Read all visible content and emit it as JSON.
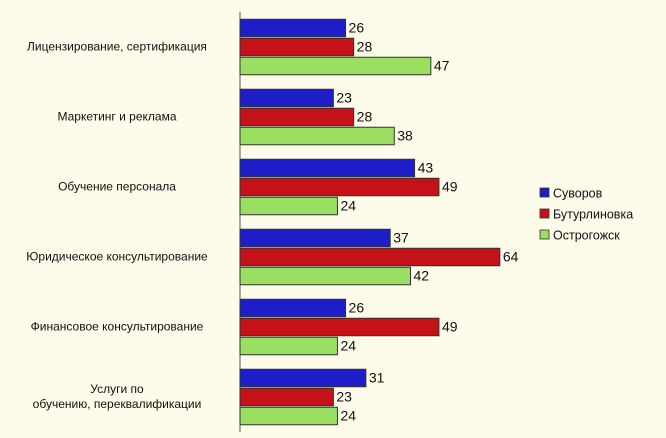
{
  "chart_data": {
    "type": "bar",
    "orientation": "horizontal",
    "categories": [
      "Лицензирование, сертификация",
      "Маркетинг и реклама",
      "Обучение персонала",
      "Юридическое консультирование",
      "Финансовое консультирование",
      "Услуги по\nобучению, переквалификации"
    ],
    "series": [
      {
        "name": "Суворов",
        "color": "#1e1ec8",
        "values": [
          26,
          23,
          43,
          37,
          26,
          31
        ]
      },
      {
        "name": "Бутурлиновка",
        "color": "#c41218",
        "values": [
          28,
          28,
          49,
          64,
          49,
          23
        ]
      },
      {
        "name": "Острогожск",
        "color": "#9adf62",
        "values": [
          47,
          38,
          24,
          42,
          24,
          24
        ]
      }
    ],
    "xlim": [
      0,
      100
    ],
    "legend": "right"
  }
}
